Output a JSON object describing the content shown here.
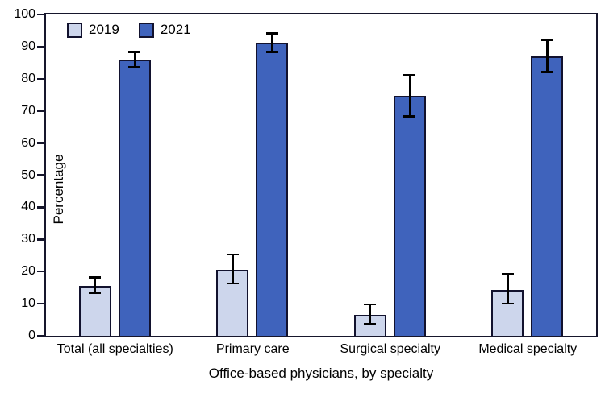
{
  "chart_data": {
    "type": "bar",
    "title": "",
    "xlabel": "Office-based physicians, by specialty",
    "ylabel": "Percentage",
    "ylim": [
      0,
      100
    ],
    "yticks": [
      0,
      10,
      20,
      30,
      40,
      50,
      60,
      70,
      80,
      90,
      100
    ],
    "grid": false,
    "legend_position": "top-left-inside",
    "error_bars": true,
    "categories": [
      "Total (all specialties)",
      "Primary care",
      "Surgical specialty",
      "Medical specialty"
    ],
    "series": [
      {
        "name": "2019",
        "color": "#cdd6ec",
        "values": [
          15.5,
          20.6,
          6.4,
          14.2
        ],
        "ci_low": [
          13.3,
          16.3,
          3.8,
          10.0
        ],
        "ci_high": [
          18.2,
          25.3,
          9.8,
          19.2
        ]
      },
      {
        "name": "2021",
        "color": "#3f63bc",
        "values": [
          86.0,
          91.3,
          74.8,
          86.9
        ],
        "ci_low": [
          83.6,
          88.4,
          68.3,
          82.1
        ],
        "ci_high": [
          88.3,
          94.1,
          81.2,
          92.0
        ]
      }
    ],
    "colors": {
      "axis": "#16162c",
      "bar_border": "#12122e",
      "error_bar": "#000000",
      "text": "#000000",
      "background": "#ffffff"
    }
  }
}
